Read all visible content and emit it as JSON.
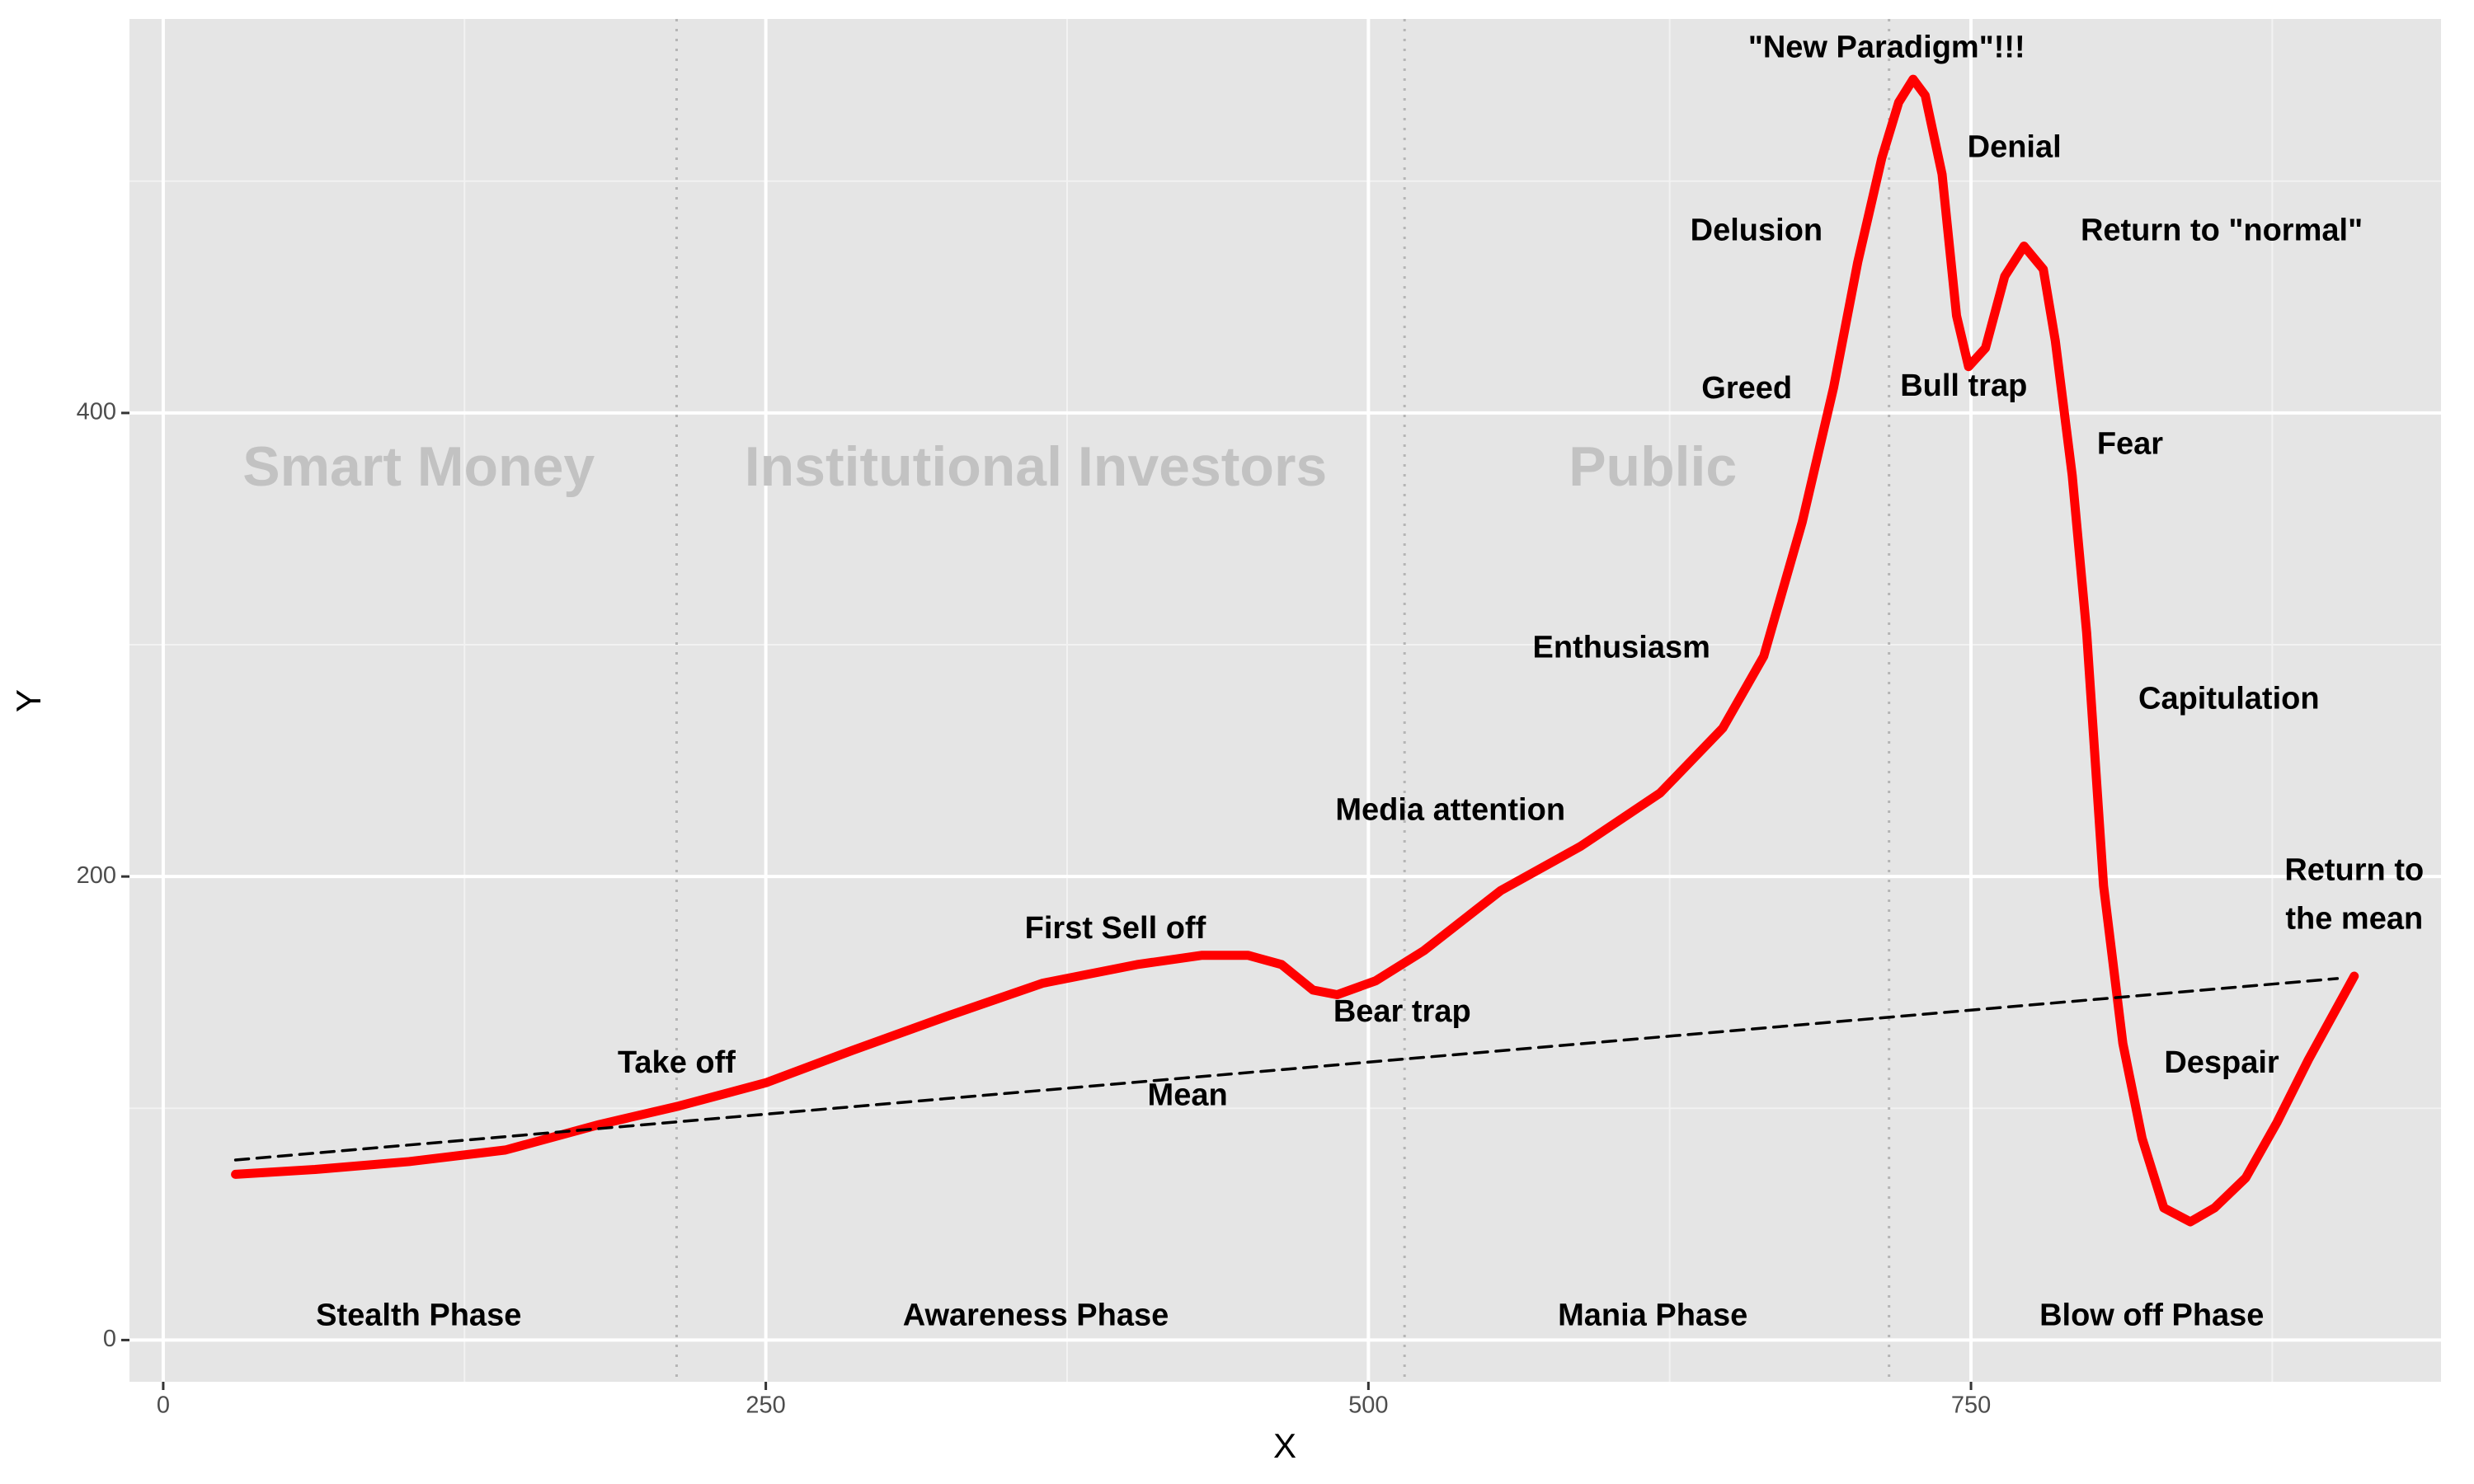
{
  "chart_data": {
    "type": "line",
    "x_label": "X",
    "y_label": "Y",
    "xlim": [
      -14,
      945
    ],
    "ylim": [
      -18,
      570
    ],
    "xticks": [
      0,
      250,
      500,
      750
    ],
    "yticks": [
      0,
      200,
      400
    ],
    "x_minor_grid": [
      125,
      375,
      625,
      875
    ],
    "y_minor_grid": [
      100,
      300,
      500
    ],
    "grid": true,
    "series": [
      {
        "color": "#ff0000",
        "dash": false,
        "x": [
          30,
          63,
          102,
          142,
          181,
          214,
          250,
          286,
          326,
          365,
          404,
          431,
          450,
          464,
          477,
          487,
          503,
          523,
          555,
          588,
          621,
          647,
          664,
          680,
          693,
          703,
          713,
          720,
          726,
          731,
          738,
          744,
          749,
          756,
          764,
          772,
          780,
          785,
          792,
          798,
          805,
          813,
          821,
          830,
          841,
          851,
          864,
          877,
          890,
          909
        ],
        "values": [
          71.5,
          73.6,
          77,
          82,
          93,
          101,
          111,
          125,
          140,
          154,
          162,
          166,
          166,
          162,
          151,
          149,
          155,
          168,
          194,
          213,
          236,
          264,
          295,
          353,
          411,
          465,
          510,
          534,
          544,
          537,
          503,
          442,
          420,
          428,
          459,
          472,
          462,
          431,
          373,
          305,
          196,
          128,
          87,
          57,
          51,
          57,
          70,
          94,
          121,
          157
        ]
      },
      {
        "color": "#000000",
        "dash": true,
        "x": [
          30,
          902
        ],
        "values": [
          77.7,
          156
        ]
      }
    ],
    "vlines": [
      213,
      515,
      716
    ],
    "region_label_color": "#c2c2c2",
    "region_labels": [
      {
        "text": "Smart Money",
        "x": 106,
        "y": 375
      },
      {
        "text": "Institutional Investors",
        "x": 362,
        "y": 375
      },
      {
        "text": "Public",
        "x": 618,
        "y": 375
      }
    ],
    "phase_labels": [
      {
        "text": "Stealth Phase",
        "x": 106,
        "y": 10
      },
      {
        "text": "Awareness Phase",
        "x": 362,
        "y": 10
      },
      {
        "text": "Mania Phase",
        "x": 618,
        "y": 10
      },
      {
        "text": "Blow off Phase",
        "x": 825,
        "y": 10
      }
    ],
    "annotations": [
      {
        "text": "Take off",
        "x": 213,
        "y": 119
      },
      {
        "text": "Mean",
        "x": 425,
        "y": 105
      },
      {
        "text": "First Sell off",
        "x": 395,
        "y": 177
      },
      {
        "text": "Bear trap",
        "x": 514,
        "y": 141
      },
      {
        "text": "Media attention",
        "x": 534,
        "y": 228
      },
      {
        "text": "Enthusiasm",
        "x": 605,
        "y": 298
      },
      {
        "text": "Greed",
        "x": 657,
        "y": 410
      },
      {
        "text": "Delusion",
        "x": 661,
        "y": 478
      },
      {
        "text": "\"New Paradigm\"!!!",
        "x": 715,
        "y": 557
      },
      {
        "text": "Denial",
        "x": 768,
        "y": 514
      },
      {
        "text": "Bull trap",
        "x": 747,
        "y": 411
      },
      {
        "text": "Return to \"normal\"",
        "x": 854,
        "y": 478
      },
      {
        "text": "Fear",
        "x": 816,
        "y": 386
      },
      {
        "text": "Capitulation",
        "x": 857,
        "y": 276
      },
      {
        "text": "Despair",
        "x": 854,
        "y": 119
      },
      {
        "text": "Return to",
        "x": 909,
        "y": 202
      },
      {
        "text": "the mean",
        "x": 909,
        "y": 181
      }
    ]
  }
}
